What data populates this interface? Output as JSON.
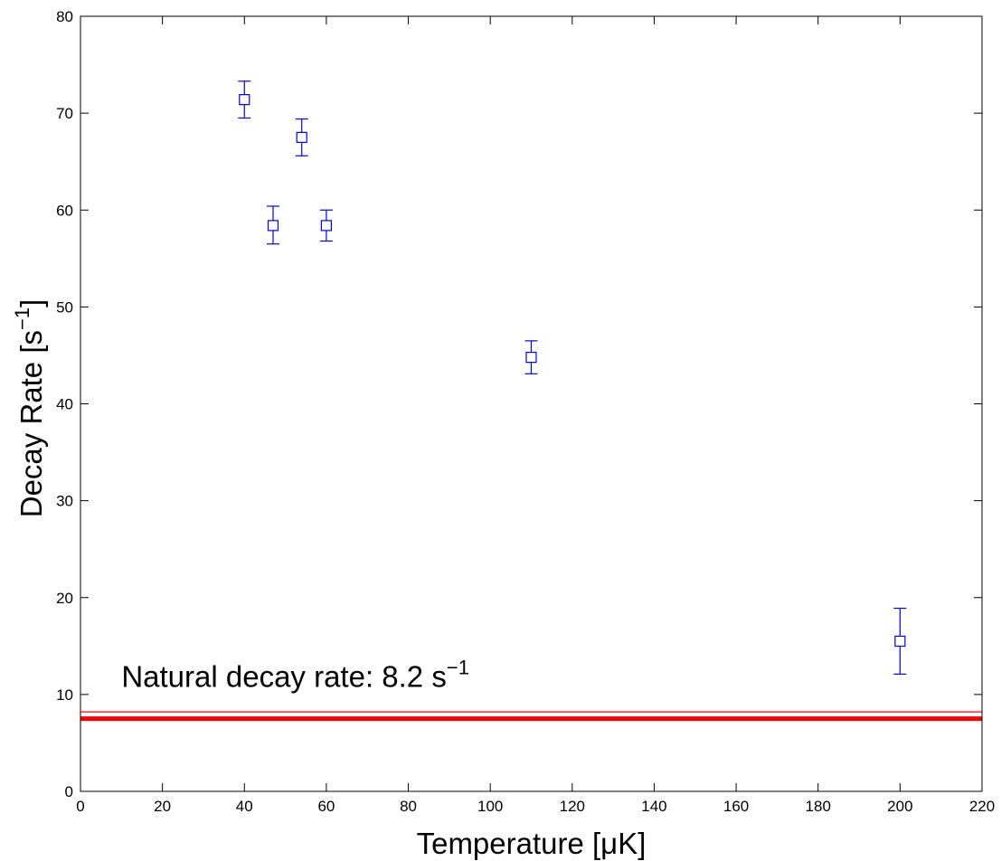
{
  "chart_data": {
    "type": "scatter",
    "xlabel": "Temperature [μK]",
    "ylabel": "Decay Rate [s",
    "ylabel_superscript": "−1",
    "ylabel_suffix": "]",
    "xlim": [
      0,
      220
    ],
    "ylim": [
      0,
      80
    ],
    "xticks": [
      0,
      20,
      40,
      60,
      80,
      100,
      120,
      140,
      160,
      180,
      200,
      220
    ],
    "yticks": [
      0,
      10,
      20,
      30,
      40,
      50,
      60,
      70,
      80
    ],
    "grid": false,
    "series": [
      {
        "marker": "square",
        "color": "#0000ff",
        "x": [
          40,
          47,
          54,
          60,
          110,
          200
        ],
        "y": [
          71.4,
          58.4,
          67.5,
          58.4,
          44.8,
          15.5
        ],
        "err_low": [
          69.5,
          56.5,
          65.6,
          56.8,
          43.1,
          12.1
        ],
        "err_high": [
          73.3,
          60.4,
          69.4,
          60.0,
          46.5,
          18.9
        ]
      }
    ],
    "reference_lines": [
      {
        "y": 7.5,
        "color": "#ff0000",
        "style": "thick"
      },
      {
        "y": 8.2,
        "color": "#ff0000",
        "style": "thin"
      }
    ],
    "annotation": {
      "text": "Natural decay rate:  8.2 s",
      "superscript": "−1",
      "x": 10,
      "y": 10.8
    }
  }
}
